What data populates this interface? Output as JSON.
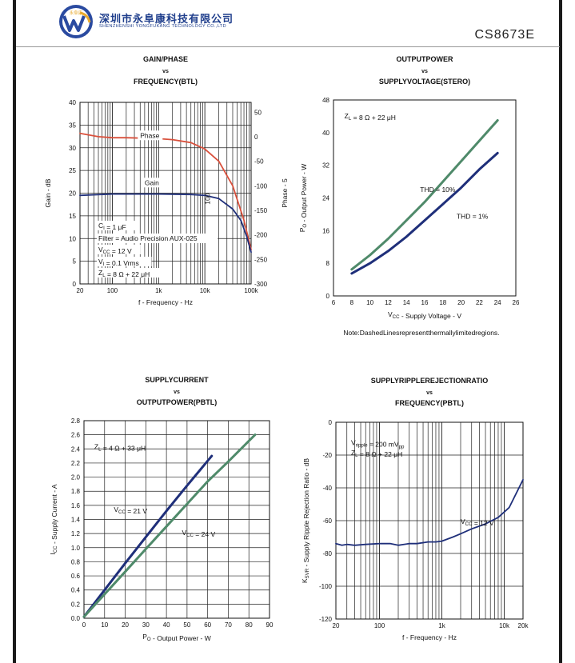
{
  "header": {
    "company_cn": "深圳市永阜康科技有限公司",
    "company_en": "SHENZHENSHI YONGFUKANG TECHNOLOGY CO.,LTD",
    "logo_text": "永阜康",
    "part_number": "CS8673E",
    "brand_color": "#1f3e8c"
  },
  "colors": {
    "red": "#d9503c",
    "navy": "#1f2f7a",
    "green": "#4f8a6a"
  },
  "note": "Note:DashedLinesrepresentthermallylimitedregions.",
  "chart_data": [
    {
      "type": "line",
      "title": [
        "GAIN/PHASE",
        "vs",
        "FREQUENCY(BTL)"
      ],
      "xlabel": "f - Frequency - Hz",
      "ylabel": "Gain - dB",
      "y2label": "Phase - 5",
      "x_scale": "log",
      "xlim": [
        20,
        100000
      ],
      "ylim": [
        0,
        40
      ],
      "y2lim": [
        -300,
        70
      ],
      "x_ticks": [
        {
          "v": 20,
          "l": "20"
        },
        {
          "v": 100,
          "l": "100"
        },
        {
          "v": 1000,
          "l": "1k"
        },
        {
          "v": 10000,
          "l": "10k"
        },
        {
          "v": 100000,
          "l": "100k"
        }
      ],
      "y_ticks": [
        0,
        5,
        10,
        15,
        20,
        25,
        30,
        35,
        40
      ],
      "y2_ticks": [
        50,
        0,
        -50,
        -100,
        -150,
        -200,
        -250,
        -300
      ],
      "grid": true,
      "series": [
        {
          "name": "Phase",
          "axis": "y2",
          "color": "red",
          "x": [
            20,
            50,
            100,
            200,
            500,
            1000,
            2000,
            5000,
            10000,
            20000,
            40000,
            70000,
            100000
          ],
          "y": [
            7,
            0,
            -2,
            -2,
            -3,
            -4,
            -6,
            -12,
            -25,
            -50,
            -100,
            -170,
            -230
          ]
        },
        {
          "name": "Gain",
          "axis": "y",
          "color": "navy",
          "x": [
            20,
            100,
            1000,
            5000,
            10000,
            20000,
            40000,
            60000,
            80000,
            100000
          ],
          "y": [
            19.5,
            19.8,
            19.8,
            19.7,
            19.5,
            18.8,
            16.5,
            14,
            10.5,
            7
          ]
        }
      ],
      "annotations": [
        {
          "text": "Phase",
          "x": 400,
          "y": 32.2
        },
        {
          "text": "Gain",
          "x": 500,
          "y": 21.8
        },
        {
          "text": "100",
          "x": 13000,
          "y": 17.5,
          "rotate": true
        }
      ],
      "legend_text": [
        "C_I = 1 μF",
        "Filter = Audio Precision AUX-025",
        "V_CC = 12 V",
        "V_I = 0.1 Vrms",
        "Z_L = 8 Ω + 22 μH"
      ]
    },
    {
      "type": "line",
      "title": [
        "OUTPUTPOWER",
        "vs",
        "SUPPLYVOLTAGE(STERO)"
      ],
      "xlabel": "V_CC - Supply Voltage - V",
      "ylabel": "P_O - Output Power - W",
      "xlim": [
        6,
        26
      ],
      "ylim": [
        0,
        48
      ],
      "x_ticks": [
        6,
        8,
        10,
        12,
        14,
        16,
        18,
        20,
        22,
        24,
        26
      ],
      "y_ticks": [
        0,
        8,
        16,
        24,
        32,
        40,
        48
      ],
      "grid": false,
      "series": [
        {
          "name": "THD = 10%",
          "color": "green",
          "x": [
            8,
            10,
            12,
            14,
            16,
            18,
            20,
            22,
            24
          ],
          "y": [
            6.5,
            10,
            14,
            18.5,
            23,
            28,
            33,
            38,
            43
          ]
        },
        {
          "name": "THD = 1%",
          "color": "navy",
          "x": [
            8,
            10,
            12,
            14,
            16,
            18,
            20,
            22,
            24
          ],
          "y": [
            5.5,
            8,
            11,
            14.5,
            18.5,
            22.5,
            26.5,
            31,
            35
          ]
        }
      ],
      "annotations": [
        {
          "text": "Z_L = 8 Ω + 22 μH",
          "x": 7.2,
          "y": 43.5
        },
        {
          "text": "THD = 10%",
          "x": 15.5,
          "y": 25.5
        },
        {
          "text": "THD = 1%",
          "x": 19.5,
          "y": 18.9
        }
      ]
    },
    {
      "type": "line",
      "title": [
        "SUPPLYCURRENT",
        "vs",
        "OUTPUTPOWER(PBTL)"
      ],
      "xlabel": "P_O - Output Power - W",
      "ylabel": "I_CC - Supply Current - A",
      "xlim": [
        0,
        90
      ],
      "ylim": [
        0,
        2.8
      ],
      "x_ticks": [
        0,
        10,
        20,
        30,
        40,
        50,
        60,
        70,
        80,
        90
      ],
      "y_ticks": [
        0,
        0.2,
        0.4,
        0.6,
        0.8,
        1.0,
        1.2,
        1.4,
        1.6,
        1.8,
        2.0,
        2.2,
        2.4,
        2.6,
        2.8
      ],
      "y_tick_labels": [
        "0.0",
        "0.2",
        "0.4",
        "0.6",
        "0.8",
        "1.0",
        "1.2",
        "1.4",
        "1.6",
        "1.8",
        "2.0",
        "2.2",
        "2.4",
        "2.6",
        "2.8"
      ],
      "grid": true,
      "series": [
        {
          "name": "V_CC = 21 V",
          "color": "navy",
          "x": [
            0,
            10,
            20,
            30,
            40,
            50,
            62
          ],
          "y": [
            0.02,
            0.4,
            0.78,
            1.15,
            1.52,
            1.88,
            2.3
          ]
        },
        {
          "name": "V_CC = 24 V",
          "color": "green",
          "x": [
            0,
            10,
            20,
            30,
            40,
            50,
            60,
            70,
            83
          ],
          "y": [
            0.02,
            0.34,
            0.66,
            0.98,
            1.3,
            1.62,
            1.94,
            2.22,
            2.6
          ]
        }
      ],
      "annotations": [
        {
          "text": "Z_L = 4 Ω + 33 μH",
          "x": 5,
          "y": 2.4
        },
        {
          "text": "V_CC = 21 V",
          "x": 14.5,
          "y": 1.51
        },
        {
          "text": "V_CC = 24 V",
          "x": 47.5,
          "y": 1.18
        }
      ]
    },
    {
      "type": "line",
      "title": [
        "SUPPLYRIPPLEREJECTIONRATIO",
        "vs",
        "FREQUENCY(PBTL)"
      ],
      "xlabel": "f - Frequency - Hz",
      "ylabel": "K_SVR - Supply Ripple Rejection Ratio - dB",
      "x_scale": "log",
      "xlim": [
        20,
        20000
      ],
      "ylim": [
        -120,
        0
      ],
      "x_ticks": [
        {
          "v": 20,
          "l": "20"
        },
        {
          "v": 100,
          "l": "100"
        },
        {
          "v": 1000,
          "l": "1k"
        },
        {
          "v": 10000,
          "l": "10k"
        },
        {
          "v": 20000,
          "l": "20k"
        }
      ],
      "y_ticks": [
        0,
        -20,
        -40,
        -60,
        -80,
        -100,
        -120
      ],
      "grid": true,
      "series": [
        {
          "name": "V_CC = 12 V",
          "color": "navy",
          "x": [
            20,
            25,
            30,
            40,
            60,
            100,
            150,
            200,
            300,
            400,
            600,
            800,
            1000,
            1500,
            2000,
            3000,
            5000,
            8000,
            12000,
            20000
          ],
          "y": [
            -74,
            -75,
            -74.5,
            -75,
            -74.5,
            -74,
            -74,
            -75,
            -74,
            -74,
            -73,
            -73,
            -72.5,
            -70,
            -68,
            -65,
            -62,
            -58,
            -52,
            -35
          ]
        }
      ],
      "annotations": [
        {
          "text": "V_ripple = 200 mV_pp",
          "x": 35,
          "y": -14
        },
        {
          "text": "Z_L = 8 Ω + 22 μH",
          "x": 35,
          "y": -20
        },
        {
          "text": "V_CC = 12 V",
          "x": 2000,
          "y": -62
        }
      ]
    }
  ]
}
